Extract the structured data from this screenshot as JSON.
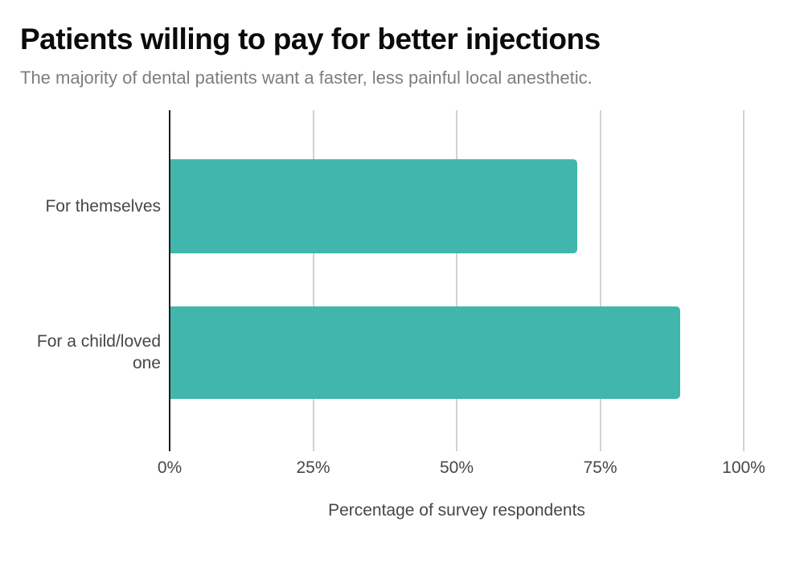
{
  "header": {
    "title": "Patients willing to pay for better injections",
    "subtitle": "The majority of dental patients want a faster, less painful local anesthetic."
  },
  "chart_data": {
    "type": "bar",
    "orientation": "horizontal",
    "title": "Patients willing to pay for better injections",
    "subtitle": "The majority of dental patients want a faster, less painful local anesthetic.",
    "categories": [
      "For themselves",
      "For a child/loved one"
    ],
    "values": [
      71,
      89
    ],
    "unit": "%",
    "xlabel": "Percentage of survey respondents",
    "ylabel": "",
    "xlim": [
      0,
      100
    ],
    "x_ticks": [
      "0%",
      "25%",
      "50%",
      "75%",
      "100%"
    ],
    "x_tick_values": [
      0,
      25,
      50,
      75,
      100
    ],
    "grid": "vertical",
    "legend": "none",
    "colors": {
      "bar": "#41b6ac",
      "axis_line": "#1f1f1f",
      "gridline": "#d2d2d2",
      "title": "#0b0b0b",
      "subtitle": "#7e7e7e",
      "labels": "#474747",
      "background": "#ffffff"
    }
  }
}
